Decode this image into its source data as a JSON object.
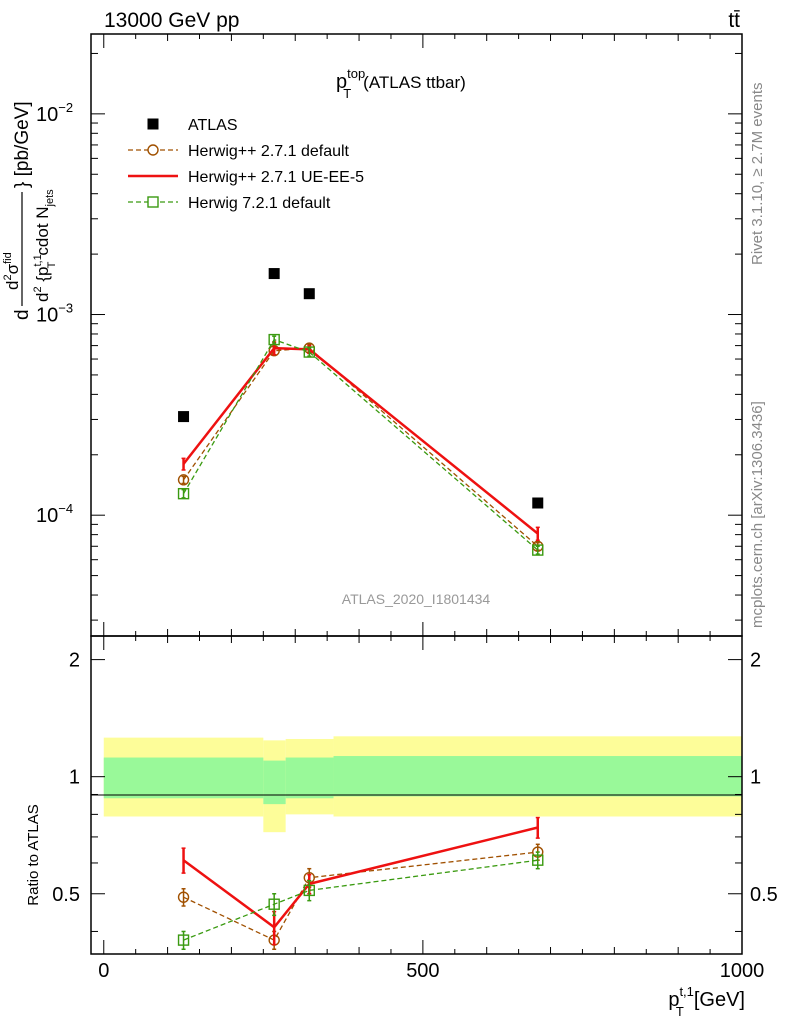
{
  "header": {
    "process": "13000 GeV pp",
    "final_state": "tt̄"
  },
  "side_labels": {
    "version": "Rivet 3.1.10, ≥ 2.7M events",
    "source": "mcplots.cern.ch [arXiv:1306.3436]"
  },
  "chart_data": [
    {
      "type": "scatter",
      "title": "p_T^top (ATLAS ttbar)",
      "analysis_id": "ATLAS_2020_I1801434",
      "ylabel": "d²σ^fid / d² {p_T^{t,1} cdot N_jets} [pb/GeV]",
      "yscale": "log",
      "ylim": [
        2.5e-05,
        0.025
      ],
      "xlim": [
        -20,
        1000
      ],
      "y_tick_labels": [
        "10^-4",
        "10^-3",
        "10^-2"
      ],
      "legend_position": "top-left",
      "series": [
        {
          "name": "ATLAS",
          "color": "#000000",
          "marker": "filled-square",
          "x": [
            125,
            267,
            322,
            680
          ],
          "y": [
            0.00031,
            0.0016,
            0.00127,
            0.000115
          ]
        },
        {
          "name": "Herwig++ 2.7.1 default",
          "color": "#a05000",
          "marker": "open-circle",
          "line": "dashed",
          "x": [
            125,
            267,
            322,
            680
          ],
          "y": [
            0.00015,
            0.00066,
            0.00068,
            7e-05
          ],
          "err": [
            6e-06,
            3e-05,
            3e-05,
            3e-06
          ]
        },
        {
          "name": "Herwig++ 2.7.1 UE-EE-5",
          "color": "#ee1111",
          "marker": "none",
          "line": "solid",
          "x": [
            125,
            267,
            322,
            680
          ],
          "y": [
            0.00018,
            0.00068,
            0.00067,
            8.1e-05
          ],
          "err": [
            1.2e-05,
            5e-05,
            3e-05,
            6e-06
          ]
        },
        {
          "name": "Herwig 7.2.1 default",
          "color": "#3a9a10",
          "marker": "open-square",
          "line": "dashed",
          "x": [
            125,
            267,
            322,
            680
          ],
          "y": [
            0.000128,
            0.00075,
            0.00065,
            6.7e-05
          ],
          "err": [
            6e-06,
            3e-05,
            3e-05,
            3e-06
          ]
        }
      ]
    },
    {
      "type": "line",
      "ylabel": "Ratio to ATLAS",
      "xlabel": "p_T^{t,1} [GeV]",
      "xlim": [
        -20,
        1000
      ],
      "ylim": [
        0.35,
        2.3
      ],
      "x_tick_labels": [
        "0",
        "500",
        "1000"
      ],
      "y_tick_labels": [
        "0.5",
        "1",
        "2"
      ],
      "reference_line": 1,
      "bands": {
        "colors": {
          "inner": "#99f999",
          "outer": "#fdfd99"
        },
        "bins": [
          {
            "xlo": 0,
            "xhi": 250,
            "inner": [
              0.88,
              1.12
            ],
            "outer": [
              0.79,
              1.26
            ]
          },
          {
            "xlo": 250,
            "xhi": 285,
            "inner": [
              0.85,
              1.1
            ],
            "outer": [
              0.72,
              1.24
            ]
          },
          {
            "xlo": 285,
            "xhi": 360,
            "inner": [
              0.88,
              1.12
            ],
            "outer": [
              0.8,
              1.25
            ]
          },
          {
            "xlo": 360,
            "xhi": 1000,
            "inner": [
              0.89,
              1.13
            ],
            "outer": [
              0.79,
              1.27
            ]
          }
        ]
      },
      "series": [
        {
          "name": "Herwig++ 2.7.1 default",
          "color": "#a05000",
          "marker": "open-circle",
          "line": "dashed",
          "x": [
            125,
            267,
            322,
            680
          ],
          "y": [
            0.49,
            0.38,
            0.55,
            0.64
          ],
          "err": [
            0.025,
            0.02,
            0.03,
            0.03
          ]
        },
        {
          "name": "Herwig++ 2.7.1 UE-EE-5",
          "color": "#ee1111",
          "marker": "none",
          "line": "solid",
          "x": [
            125,
            267,
            322,
            680
          ],
          "y": [
            0.61,
            0.41,
            0.53,
            0.74
          ],
          "err": [
            0.045,
            0.04,
            0.03,
            0.045
          ]
        },
        {
          "name": "Herwig 7.2.1 default",
          "color": "#3a9a10",
          "marker": "open-square",
          "line": "dashed",
          "x": [
            125,
            267,
            322,
            680
          ],
          "y": [
            0.38,
            0.47,
            0.51,
            0.61
          ],
          "err": [
            0.02,
            0.03,
            0.03,
            0.03
          ]
        }
      ]
    }
  ]
}
